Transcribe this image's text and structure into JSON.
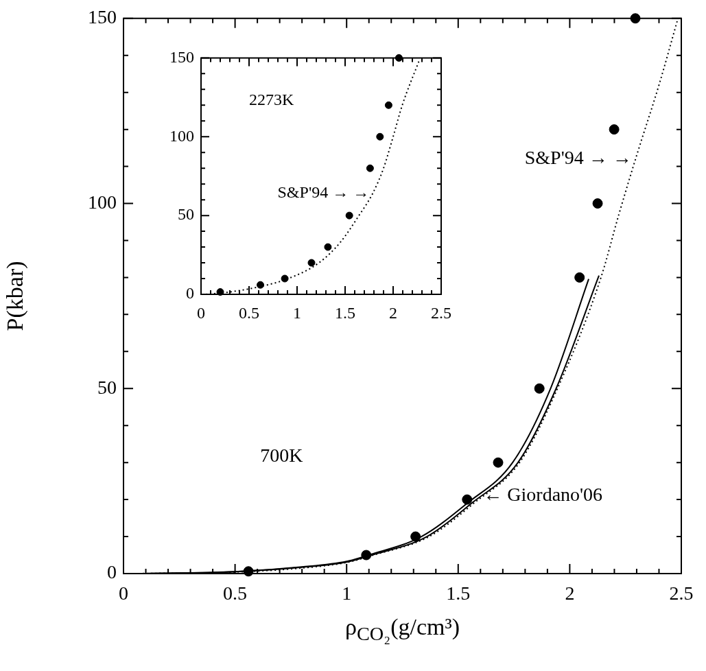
{
  "chart_data": [
    {
      "type": "line",
      "xlabel": "ρ$_{CO₂}$(g/cm³)",
      "ylabel": "P(kbar)",
      "xlim": [
        0,
        2.5
      ],
      "ylim": [
        0,
        150
      ],
      "xticks": [
        0,
        {
          "value": 0.1,
          "label": null
        },
        {
          "value": 0.2,
          "label": null
        },
        {
          "value": 0.3,
          "label": null
        },
        {
          "value": 0.4,
          "label": null
        },
        0.5,
        {
          "value": 0.6,
          "label": null
        },
        {
          "value": 0.7,
          "label": null
        },
        {
          "value": 0.8,
          "label": null
        },
        {
          "value": 0.9,
          "label": null
        },
        1,
        {
          "value": 1.1,
          "label": null
        },
        {
          "value": 1.2,
          "label": null
        },
        {
          "value": 1.3,
          "label": null
        },
        {
          "value": 1.4,
          "label": null
        },
        1.5,
        {
          "value": 1.6,
          "label": null
        },
        {
          "value": 1.7,
          "label": null
        },
        {
          "value": 1.8,
          "label": null
        },
        {
          "value": 1.9,
          "label": null
        },
        2,
        {
          "value": 2.1,
          "label": null
        },
        {
          "value": 2.2,
          "label": null
        },
        {
          "value": 2.3,
          "label": null
        },
        {
          "value": 2.4,
          "label": null
        },
        2.5
      ],
      "yticks": [
        0,
        {
          "value": 10,
          "label": null
        },
        {
          "value": 20,
          "label": null
        },
        {
          "value": 30,
          "label": null
        },
        {
          "value": 40,
          "label": null
        },
        50,
        {
          "value": 60,
          "label": null
        },
        {
          "value": 70,
          "label": null
        },
        {
          "value": 80,
          "label": null
        },
        {
          "value": 90,
          "label": null
        },
        100,
        {
          "value": 110,
          "label": null
        },
        {
          "value": 120,
          "label": null
        },
        {
          "value": 130,
          "label": null
        },
        {
          "value": 140,
          "label": null
        },
        150
      ],
      "grid": false,
      "legend": false,
      "annotations": [
        "700K",
        {
          "text": "← Giordano'06",
          "x": 1.6,
          "y": 21
        },
        {
          "text": "S&P'94 → →",
          "x": 2.29,
          "y": 112
        }
      ],
      "series": [
        {
          "type": "scatter",
          "color": "#000000",
          "marker": "circle",
          "x": [
            0.56,
            1.088,
            1.309,
            1.54,
            1.679,
            1.864,
            2.044,
            2.125,
            2.199,
            2.294
          ],
          "values": [
            0.6,
            5,
            10,
            20,
            30,
            50,
            80,
            100,
            120,
            150
          ]
        },
        {
          "color": "#000000",
          "line_style": "solid",
          "marker": "none",
          "x": [
            0.1,
            0.5,
            0.8,
            1.0,
            1.098,
            1.335,
            1.54,
            1.744,
            1.914,
            2.085
          ],
          "values": [
            0,
            0.5,
            1.8,
            3.3,
            5,
            10,
            19,
            30,
            50,
            79.6
          ]
        },
        {
          "color": "#000000",
          "line_style": "solid",
          "marker": "none",
          "x": [
            0.1,
            0.5,
            0.8,
            1.0,
            1.113,
            1.36,
            1.56,
            1.768,
            1.939,
            2.131
          ],
          "values": [
            0,
            0.5,
            1.7,
            3.1,
            5,
            10,
            19,
            30,
            50,
            80.5
          ]
        },
        {
          "color": "#000000",
          "line_style": "dotted",
          "marker": "none",
          "x": [
            0.05,
            0.5,
            0.8,
            1.0,
            1.12,
            1.37,
            1.57,
            1.775,
            1.945,
            2.14,
            2.22,
            2.3,
            2.4,
            2.485
          ],
          "values": [
            0,
            0.4,
            1.5,
            3,
            5,
            10,
            19,
            30,
            50,
            80,
            97,
            113,
            132,
            150
          ]
        }
      ]
    },
    {
      "type": "line",
      "xlim": [
        0,
        2.5
      ],
      "ylim": [
        0,
        150
      ],
      "xticks": [
        0,
        {
          "value": 0.1,
          "label": null
        },
        {
          "value": 0.2,
          "label": null
        },
        {
          "value": 0.3,
          "label": null
        },
        {
          "value": 0.4,
          "label": null
        },
        0.5,
        {
          "value": 0.6,
          "label": null
        },
        {
          "value": 0.7,
          "label": null
        },
        {
          "value": 0.8,
          "label": null
        },
        {
          "value": 0.9,
          "label": null
        },
        1,
        {
          "value": 1.1,
          "label": null
        },
        {
          "value": 1.2,
          "label": null
        },
        {
          "value": 1.3,
          "label": null
        },
        {
          "value": 1.4,
          "label": null
        },
        1.5,
        {
          "value": 1.6,
          "label": null
        },
        {
          "value": 1.7,
          "label": null
        },
        {
          "value": 1.8,
          "label": null
        },
        {
          "value": 1.9,
          "label": null
        },
        2,
        {
          "value": 2.1,
          "label": null
        },
        {
          "value": 2.2,
          "label": null
        },
        {
          "value": 2.3,
          "label": null
        },
        {
          "value": 2.4,
          "label": null
        },
        2.5
      ],
      "yticks": [
        0,
        {
          "value": 10,
          "label": null
        },
        {
          "value": 20,
          "label": null
        },
        {
          "value": 30,
          "label": null
        },
        {
          "value": 40,
          "label": null
        },
        50,
        {
          "value": 60,
          "label": null
        },
        {
          "value": 70,
          "label": null
        },
        {
          "value": 80,
          "label": null
        },
        {
          "value": 90,
          "label": null
        },
        100,
        {
          "value": 110,
          "label": null
        },
        {
          "value": 120,
          "label": null
        },
        {
          "value": 130,
          "label": null
        },
        {
          "value": 140,
          "label": null
        },
        150
      ],
      "grid": false,
      "legend": false,
      "annotations": [
        "2273K",
        {
          "text": "S&P'94 → →",
          "x": 1.78,
          "y": 64
        }
      ],
      "series": [
        {
          "type": "scatter",
          "color": "#000000",
          "marker": "circle",
          "x": [
            0.2,
            0.618,
            0.872,
            1.15,
            1.321,
            1.544,
            1.76,
            1.863,
            1.953,
            2.06
          ],
          "values": [
            1.5,
            6,
            10,
            20,
            30,
            50,
            80,
            100,
            120,
            150
          ]
        },
        {
          "color": "#000000",
          "line_style": "dotted",
          "marker": "none",
          "x": [
            0.05,
            0.3,
            0.62,
            0.908,
            1.228,
            1.45,
            1.644,
            1.787,
            1.9,
            2.0,
            2.095,
            2.269
          ],
          "values": [
            0,
            1.5,
            5,
            10,
            20,
            33,
            50,
            64,
            80,
            100,
            120,
            148
          ]
        }
      ]
    }
  ]
}
